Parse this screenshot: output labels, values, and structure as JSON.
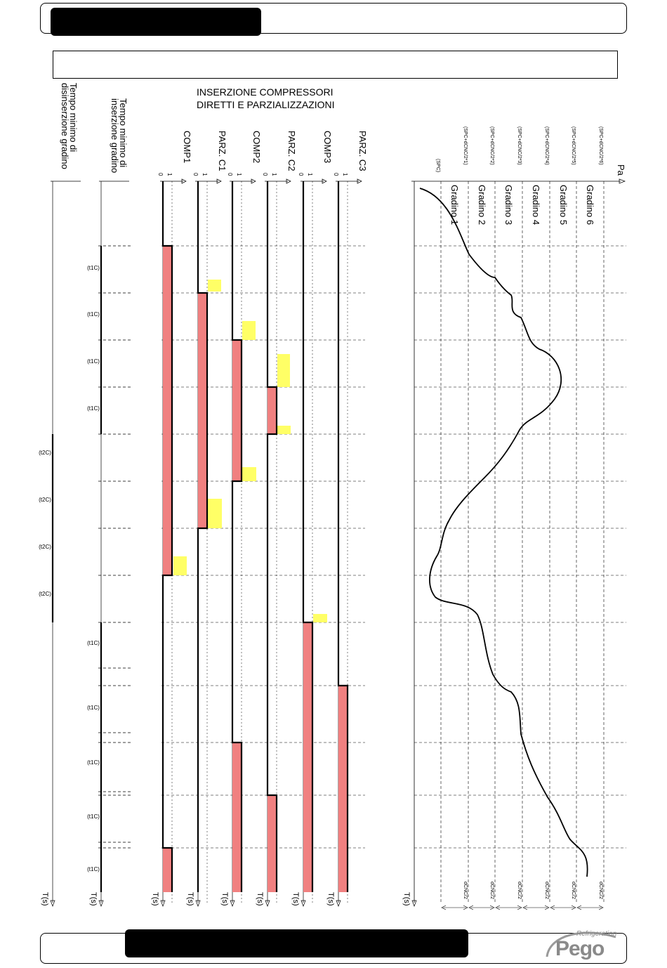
{
  "title": {
    "line1": "INSERZIONE COMPRESSORI",
    "line2": "DIRETTI E PARZIALIZZAZIONI"
  },
  "left_labels": {
    "t1c_title_line1": "Tempo minimo di",
    "t1c_title_line2": "inserzione gradino",
    "t2c_title_line1": "Tempo minimo di",
    "t2c_title_line2": "disinserzione gradino",
    "t1c_mark": "(t1C)",
    "t2c_mark": "(t2C)"
  },
  "time_axis_label": "T(s)",
  "pressure_axis_label": "Pa",
  "level_0": "0",
  "level_1": "1",
  "channels": [
    {
      "name": "COMP1"
    },
    {
      "name": "PARZ. C1"
    },
    {
      "name": "COMP2"
    },
    {
      "name": "PARZ. C2"
    },
    {
      "name": "COMP3"
    },
    {
      "name": "PARZ. C3"
    }
  ],
  "pressure_levels": [
    {
      "label": "(SPC)"
    },
    {
      "label": "(SPC+dCNC/2*1)"
    },
    {
      "label": "(SPC+dCNC/2*2)"
    },
    {
      "label": "(SPC+dCNC/2*3)"
    },
    {
      "label": "(SPC+dCNC/2*4)"
    },
    {
      "label": "(SPC+dCNC/2*5)"
    },
    {
      "label": "(SPC+dCNC/2*6)"
    }
  ],
  "steps": [
    "Gradino 1",
    "Gradino 2",
    "Gradino 3",
    "Gradino 4",
    "Gradino 5",
    "Gradino 6"
  ],
  "band_label": "dCNC/2",
  "logo": {
    "brand": "Pego",
    "tagline": "Refrigeration"
  },
  "colors": {
    "active_fill": "#f08080",
    "delay_fill": "#ffff66",
    "line": "#000000"
  }
}
